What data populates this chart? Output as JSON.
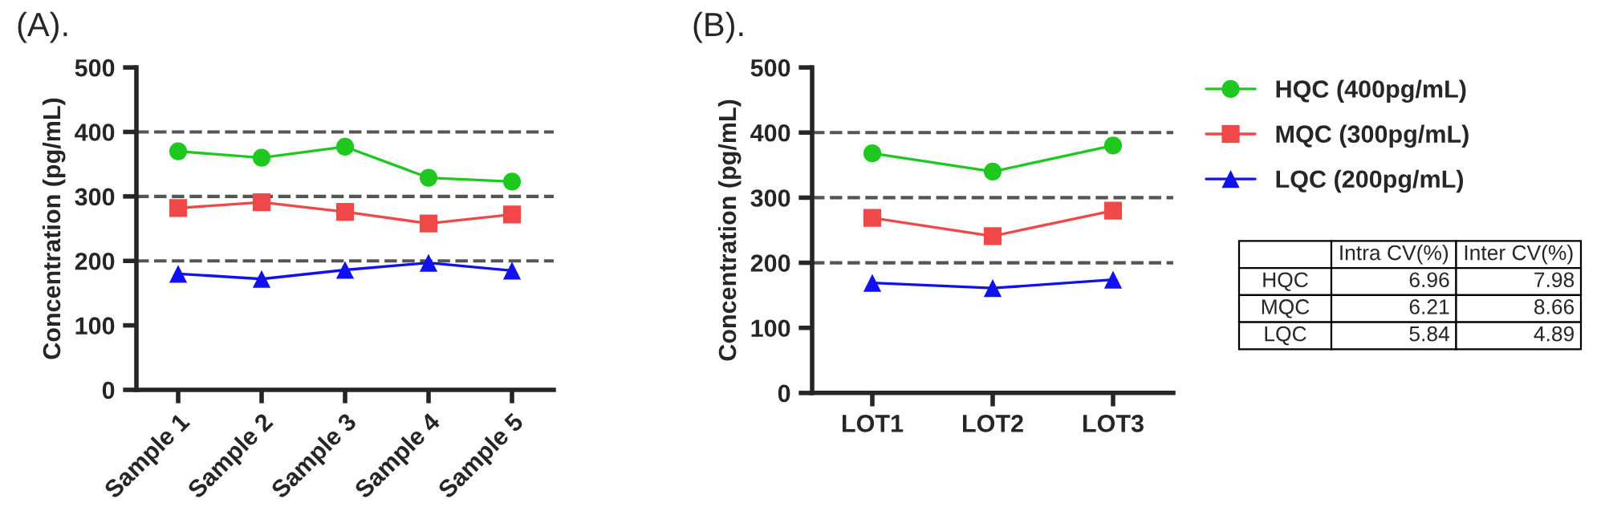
{
  "chart_data": [
    {
      "type": "line",
      "title": "(A).",
      "ylabel": "Concentration (pg/mL)",
      "categories": [
        "Sample 1",
        "Sample 2",
        "Sample 3",
        "Sample 4",
        "Sample 5"
      ],
      "series": [
        {
          "color": "#1ec81e",
          "marker": "circle",
          "values": [
            370,
            360,
            377,
            329,
            323
          ]
        },
        {
          "color": "#f04848",
          "marker": "square",
          "values": [
            282,
            291,
            276,
            258,
            272
          ]
        },
        {
          "color": "#1010f0",
          "marker": "triangle",
          "values": [
            180,
            172,
            186,
            197,
            185
          ]
        }
      ],
      "ylim": [
        0,
        500
      ],
      "yticks": [
        0,
        100,
        200,
        300,
        400,
        500
      ],
      "grid": false,
      "legend": false,
      "line_style": "solid",
      "ref_lines": [
        {
          "axis": "y",
          "value": 200,
          "color": "#555555",
          "line_style": "dashed"
        },
        {
          "axis": "y",
          "value": 300,
          "color": "#555555",
          "line_style": "dashed"
        },
        {
          "axis": "y",
          "value": 400,
          "color": "#555555",
          "line_style": "dashed"
        }
      ]
    },
    {
      "type": "line",
      "title": "(B).",
      "ylabel": "Concentration (pg/mL)",
      "categories": [
        "LOT1",
        "LOT2",
        "LOT3"
      ],
      "series": [
        {
          "name": "HQC (400pg/mL)",
          "color": "#1ec81e",
          "marker": "circle",
          "values": [
            368,
            340,
            380
          ]
        },
        {
          "name": "MQC (300pg/mL)",
          "color": "#f04848",
          "marker": "square",
          "values": [
            269,
            241,
            280
          ]
        },
        {
          "name": "LQC (200pg/mL)",
          "color": "#1010f0",
          "marker": "triangle",
          "values": [
            169,
            161,
            174
          ]
        }
      ],
      "ylim": [
        0,
        500
      ],
      "yticks": [
        0,
        100,
        200,
        300,
        400,
        500
      ],
      "grid": false,
      "legend": "right",
      "line_style": "solid",
      "ref_lines": [
        {
          "axis": "y",
          "value": 200,
          "color": "#555555",
          "line_style": "dashed"
        },
        {
          "axis": "y",
          "value": 300,
          "color": "#555555",
          "line_style": "dashed"
        },
        {
          "axis": "y",
          "value": 400,
          "color": "#555555",
          "line_style": "dashed"
        }
      ]
    },
    {
      "type": "other",
      "categories": [
        "HQC",
        "MQC",
        "LQC"
      ],
      "data_labels": true,
      "series": [
        {
          "name": "Intra CV(%)",
          "values": [
            6.96,
            6.21,
            5.84
          ]
        },
        {
          "name": "Inter CV(%)",
          "values": [
            7.98,
            8.66,
            4.89
          ]
        }
      ]
    }
  ]
}
